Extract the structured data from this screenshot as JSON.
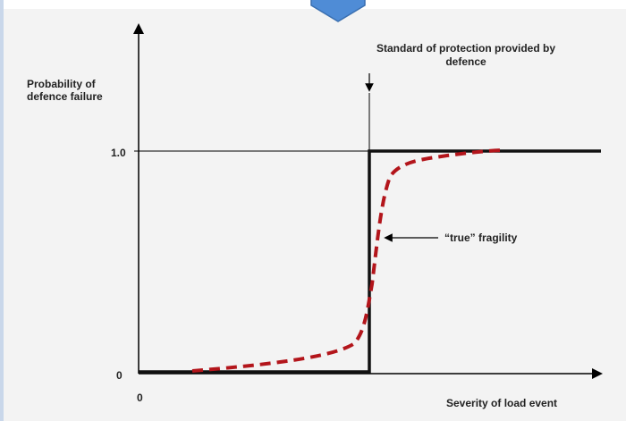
{
  "labels": {
    "y_axis": "Probability of defence failure",
    "tick_one": "1.0",
    "tick_zero_y": "0",
    "tick_zero_x": "0",
    "x_axis": "Severity of load event",
    "standard_of_protection": "Standard of protection provided by defence",
    "true_fragility": "“true” fragility"
  },
  "colors": {
    "axis": "#000000",
    "step_curve": "#111111",
    "fragility_curve": "#b3151b",
    "panel_background": "#f3f3f3",
    "arrow_fill": "#4f8cd6",
    "arrow_stroke": "#3a6fb0"
  },
  "icons": {
    "top_arrow": "down-arrow-icon"
  }
}
